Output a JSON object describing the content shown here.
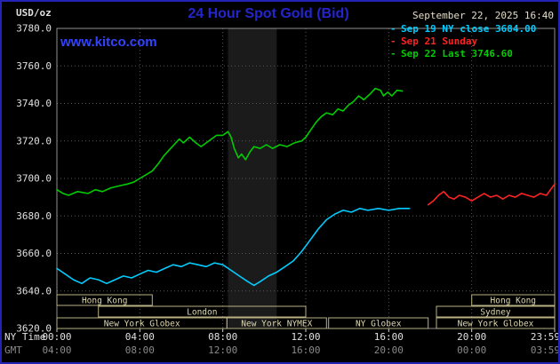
{
  "header": {
    "unit_label": "USD/oz",
    "title": "24 Hour Spot Gold (Bid)",
    "title_color": "#2525cc",
    "datetime": "September 22, 2025 16:40",
    "datetime_color": "#e3dcc6",
    "watermark": "www.kitco.com",
    "watermark_color": "#3344ff",
    "legend": [
      {
        "marker": "-",
        "label": "Sep 19 NY close 3684.00",
        "color": "#00ccff"
      },
      {
        "marker": "-",
        "label": "Sep 21 Sunday",
        "color": "#ff2222"
      },
      {
        "marker": "-",
        "label": "Sep 22 Last 3746.60",
        "color": "#00cc00"
      }
    ]
  },
  "axes": {
    "ny_label": "NY Time",
    "gmt_label": "GMT",
    "y_ticks": [
      "3780.0",
      "3760.0",
      "3740.0",
      "3720.0",
      "3700.0",
      "3680.0",
      "3660.0",
      "3640.0",
      "3620.0"
    ],
    "ny_ticks": [
      "00:00",
      "04:00",
      "08:00",
      "12:00",
      "16:00",
      "20:00",
      "23:59"
    ],
    "gmt_ticks": [
      "04:00",
      "08:00",
      "12:00",
      "16:00",
      "20:00",
      "00:00",
      "03:59"
    ]
  },
  "chart_data": {
    "type": "line",
    "title": "24 Hour Spot Gold (Bid)",
    "ylabel": "USD/oz",
    "ylim": [
      3620,
      3780
    ],
    "xlim_hours": [
      0,
      24
    ],
    "x_ticks_hours": [
      0,
      4,
      8,
      12,
      16,
      20,
      24
    ],
    "grid": true,
    "legend_position": "top-right",
    "grid_color": "#585858",
    "border_color": "#909090",
    "shaded_region_hours": [
      8.25,
      10.6
    ],
    "shaded_region_color": "#1b1b1b",
    "session_box_color": "#b8b183",
    "session_text_color": "#ded8ae",
    "series": [
      {
        "id": "sep19-ny-close",
        "name": "Sep 19 NY close",
        "close": 3684.0,
        "color": "#00ccff",
        "points": [
          [
            0,
            3652
          ],
          [
            0.4,
            3649
          ],
          [
            0.8,
            3646
          ],
          [
            1.2,
            3644
          ],
          [
            1.6,
            3647
          ],
          [
            2,
            3646
          ],
          [
            2.4,
            3644
          ],
          [
            2.8,
            3646
          ],
          [
            3.2,
            3648
          ],
          [
            3.6,
            3647
          ],
          [
            4,
            3649
          ],
          [
            4.4,
            3651
          ],
          [
            4.8,
            3650
          ],
          [
            5.2,
            3652
          ],
          [
            5.6,
            3654
          ],
          [
            6,
            3653
          ],
          [
            6.4,
            3655
          ],
          [
            6.8,
            3654
          ],
          [
            7.2,
            3653
          ],
          [
            7.6,
            3655
          ],
          [
            8,
            3654
          ],
          [
            8.4,
            3651
          ],
          [
            8.8,
            3648
          ],
          [
            9.2,
            3645
          ],
          [
            9.5,
            3643
          ],
          [
            9.8,
            3645
          ],
          [
            10.2,
            3648
          ],
          [
            10.6,
            3650
          ],
          [
            11,
            3653
          ],
          [
            11.4,
            3656
          ],
          [
            11.8,
            3661
          ],
          [
            12.2,
            3667
          ],
          [
            12.6,
            3673
          ],
          [
            13,
            3678
          ],
          [
            13.4,
            3681
          ],
          [
            13.8,
            3683
          ],
          [
            14.2,
            3682
          ],
          [
            14.6,
            3684
          ],
          [
            15,
            3683
          ],
          [
            15.5,
            3684
          ],
          [
            16,
            3683
          ],
          [
            16.5,
            3684
          ],
          [
            17,
            3684
          ]
        ]
      },
      {
        "id": "sep21-sunday",
        "name": "Sep 21 Sunday",
        "color": "#ff2222",
        "points": [
          [
            17.9,
            3686
          ],
          [
            18.15,
            3688
          ],
          [
            18.4,
            3691
          ],
          [
            18.65,
            3693
          ],
          [
            18.9,
            3690
          ],
          [
            19.15,
            3689
          ],
          [
            19.4,
            3691
          ],
          [
            19.7,
            3690
          ],
          [
            20,
            3688
          ],
          [
            20.3,
            3690
          ],
          [
            20.6,
            3692
          ],
          [
            20.9,
            3690
          ],
          [
            21.2,
            3691
          ],
          [
            21.5,
            3689
          ],
          [
            21.8,
            3691
          ],
          [
            22.1,
            3690
          ],
          [
            22.4,
            3692
          ],
          [
            22.7,
            3691
          ],
          [
            23,
            3690
          ],
          [
            23.3,
            3692
          ],
          [
            23.6,
            3691
          ],
          [
            23.8,
            3694
          ],
          [
            24,
            3697
          ]
        ]
      },
      {
        "id": "sep22-current",
        "name": "Sep 22",
        "last": 3746.6,
        "color": "#00cc00",
        "points": [
          [
            0,
            3694
          ],
          [
            0.3,
            3692
          ],
          [
            0.56,
            3691
          ],
          [
            1,
            3693
          ],
          [
            1.5,
            3692
          ],
          [
            1.85,
            3694
          ],
          [
            2.2,
            3693
          ],
          [
            2.6,
            3695
          ],
          [
            3,
            3696
          ],
          [
            3.4,
            3697
          ],
          [
            3.7,
            3698
          ],
          [
            4,
            3700
          ],
          [
            4.3,
            3702
          ],
          [
            4.6,
            3704
          ],
          [
            4.9,
            3708
          ],
          [
            5.15,
            3712
          ],
          [
            5.4,
            3715
          ],
          [
            5.65,
            3718
          ],
          [
            5.9,
            3721
          ],
          [
            6.1,
            3719
          ],
          [
            6.4,
            3722
          ],
          [
            6.7,
            3719
          ],
          [
            6.95,
            3717
          ],
          [
            7.2,
            3719
          ],
          [
            7.45,
            3721
          ],
          [
            7.7,
            3723
          ],
          [
            8,
            3723
          ],
          [
            8.25,
            3725
          ],
          [
            8.4,
            3722
          ],
          [
            8.55,
            3716
          ],
          [
            8.75,
            3711
          ],
          [
            8.9,
            3713
          ],
          [
            9.1,
            3710
          ],
          [
            9.3,
            3714
          ],
          [
            9.5,
            3717
          ],
          [
            9.8,
            3716
          ],
          [
            10.1,
            3718
          ],
          [
            10.4,
            3716
          ],
          [
            10.75,
            3718
          ],
          [
            11.1,
            3717
          ],
          [
            11.45,
            3719
          ],
          [
            11.8,
            3720
          ],
          [
            12,
            3722
          ],
          [
            12.25,
            3726
          ],
          [
            12.5,
            3730
          ],
          [
            12.75,
            3733
          ],
          [
            13,
            3735
          ],
          [
            13.3,
            3734
          ],
          [
            13.55,
            3737
          ],
          [
            13.8,
            3736
          ],
          [
            14.05,
            3739
          ],
          [
            14.3,
            3741
          ],
          [
            14.55,
            3744
          ],
          [
            14.8,
            3742
          ],
          [
            15.1,
            3745
          ],
          [
            15.35,
            3748
          ],
          [
            15.6,
            3747
          ],
          [
            15.75,
            3744
          ],
          [
            15.95,
            3746
          ],
          [
            16.15,
            3744
          ],
          [
            16.4,
            3747
          ],
          [
            16.65,
            3746.6
          ]
        ]
      }
    ],
    "sessions": [
      {
        "row": 0,
        "label": "Hong Kong",
        "start": 0,
        "end": 4.6
      },
      {
        "row": 0,
        "label": "Hong Kong",
        "start": 20,
        "end": 24
      },
      {
        "row": 1,
        "label": "London",
        "start": 2,
        "end": 12
      },
      {
        "row": 1,
        "label": "Sydney",
        "start": 18.3,
        "end": 24
      },
      {
        "row": 2,
        "label": "New York Globex",
        "start": 0,
        "end": 8.2
      },
      {
        "row": 2,
        "label": "New York NYMEX",
        "start": 8.2,
        "end": 13.0
      },
      {
        "row": 2,
        "label": "NY Globex",
        "start": 13.1,
        "end": 17.9
      },
      {
        "row": 2,
        "label": "New York Globex",
        "start": 18.3,
        "end": 24
      }
    ]
  }
}
